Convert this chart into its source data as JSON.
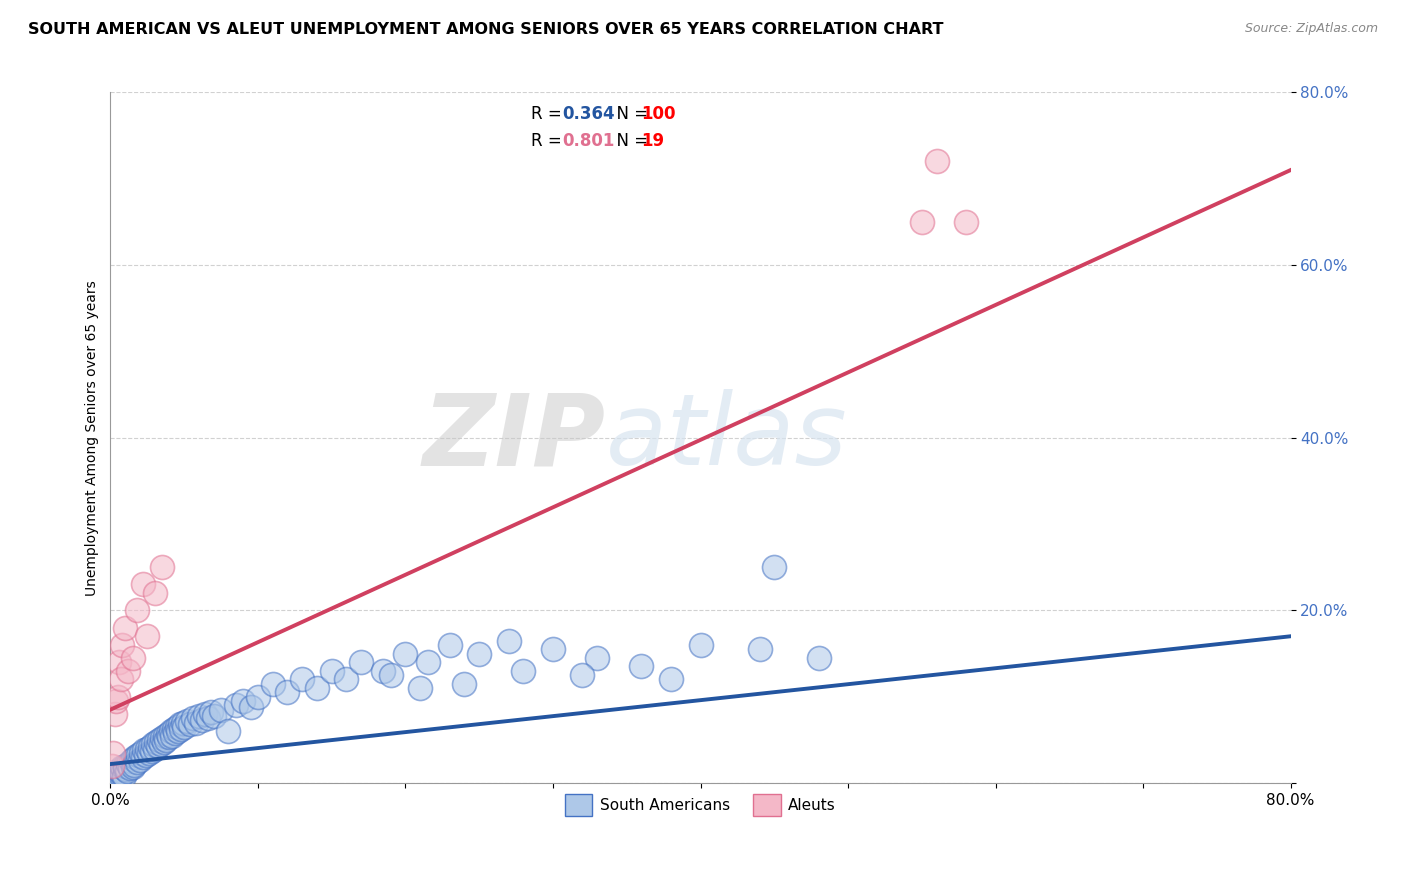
{
  "title": "SOUTH AMERICAN VS ALEUT UNEMPLOYMENT AMONG SENIORS OVER 65 YEARS CORRELATION CHART",
  "source": "Source: ZipAtlas.com",
  "ylabel": "Unemployment Among Seniors over 65 years",
  "legend_blue_label": "South Americans",
  "legend_pink_label": "Aleuts",
  "blue_color": "#aec8e8",
  "pink_color": "#f4b8c8",
  "blue_edge_color": "#4472c4",
  "pink_edge_color": "#e07090",
  "blue_line_color": "#2355a0",
  "pink_line_color": "#d04060",
  "yaxis_label_color": "#4472c4",
  "watermark_color": "#d8e4f0",
  "xlim": [
    0.0,
    0.8
  ],
  "ylim": [
    0.0,
    0.8
  ],
  "blue_scatter_x": [
    0.001,
    0.002,
    0.002,
    0.003,
    0.003,
    0.004,
    0.005,
    0.005,
    0.006,
    0.006,
    0.007,
    0.007,
    0.008,
    0.008,
    0.009,
    0.01,
    0.01,
    0.011,
    0.012,
    0.013,
    0.014,
    0.015,
    0.015,
    0.016,
    0.017,
    0.018,
    0.019,
    0.02,
    0.021,
    0.022,
    0.023,
    0.024,
    0.025,
    0.026,
    0.027,
    0.028,
    0.029,
    0.03,
    0.031,
    0.032,
    0.033,
    0.034,
    0.035,
    0.036,
    0.037,
    0.038,
    0.039,
    0.04,
    0.041,
    0.042,
    0.043,
    0.044,
    0.045,
    0.046,
    0.047,
    0.048,
    0.049,
    0.05,
    0.052,
    0.054,
    0.056,
    0.058,
    0.06,
    0.062,
    0.064,
    0.066,
    0.068,
    0.07,
    0.075,
    0.08,
    0.085,
    0.09,
    0.095,
    0.1,
    0.11,
    0.12,
    0.13,
    0.14,
    0.15,
    0.16,
    0.17,
    0.185,
    0.2,
    0.215,
    0.23,
    0.25,
    0.27,
    0.3,
    0.33,
    0.36,
    0.4,
    0.44,
    0.48,
    0.45,
    0.38,
    0.32,
    0.28,
    0.24,
    0.21,
    0.19
  ],
  "blue_scatter_y": [
    0.002,
    0.005,
    0.008,
    0.003,
    0.01,
    0.007,
    0.004,
    0.012,
    0.006,
    0.015,
    0.009,
    0.013,
    0.011,
    0.018,
    0.008,
    0.016,
    0.02,
    0.014,
    0.022,
    0.017,
    0.025,
    0.019,
    0.028,
    0.021,
    0.03,
    0.024,
    0.033,
    0.027,
    0.035,
    0.03,
    0.038,
    0.032,
    0.04,
    0.035,
    0.042,
    0.037,
    0.045,
    0.04,
    0.048,
    0.043,
    0.05,
    0.045,
    0.052,
    0.048,
    0.055,
    0.05,
    0.057,
    0.053,
    0.06,
    0.055,
    0.063,
    0.058,
    0.065,
    0.06,
    0.068,
    0.063,
    0.07,
    0.065,
    0.072,
    0.068,
    0.075,
    0.07,
    0.078,
    0.073,
    0.08,
    0.075,
    0.082,
    0.078,
    0.085,
    0.06,
    0.09,
    0.095,
    0.088,
    0.1,
    0.115,
    0.105,
    0.12,
    0.11,
    0.13,
    0.12,
    0.14,
    0.13,
    0.15,
    0.14,
    0.16,
    0.15,
    0.165,
    0.155,
    0.145,
    0.135,
    0.16,
    0.155,
    0.145,
    0.25,
    0.12,
    0.125,
    0.13,
    0.115,
    0.11,
    0.125
  ],
  "pink_scatter_x": [
    0.001,
    0.002,
    0.003,
    0.004,
    0.005,
    0.006,
    0.007,
    0.008,
    0.01,
    0.012,
    0.015,
    0.018,
    0.022,
    0.025,
    0.03,
    0.035,
    0.55,
    0.58,
    0.56
  ],
  "pink_scatter_y": [
    0.02,
    0.035,
    0.08,
    0.095,
    0.1,
    0.14,
    0.12,
    0.16,
    0.18,
    0.13,
    0.145,
    0.2,
    0.23,
    0.17,
    0.22,
    0.25,
    0.65,
    0.65,
    0.72
  ],
  "blue_line_x0": 0.0,
  "blue_line_y0": 0.022,
  "blue_line_x1": 0.8,
  "blue_line_y1": 0.17,
  "pink_line_x0": 0.0,
  "pink_line_y0": 0.085,
  "pink_line_x1": 0.8,
  "pink_line_y1": 0.71
}
